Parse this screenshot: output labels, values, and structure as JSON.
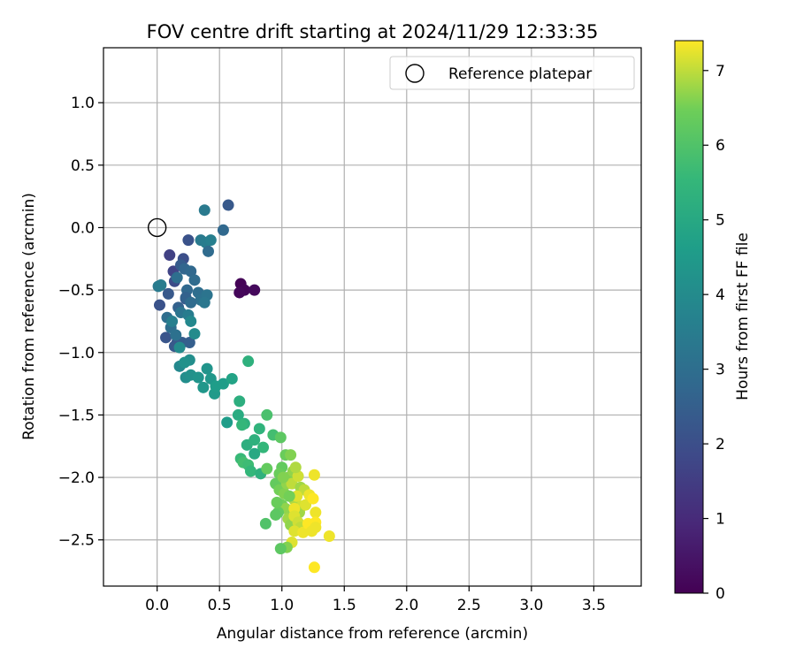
{
  "chart_data": {
    "type": "scatter",
    "title": "FOV centre drift starting at 2024/11/29 12:33:35",
    "xlabel": "Angular distance from reference (arcmin)",
    "ylabel": "Rotation from reference (arcmin)",
    "xlim": [
      -0.43,
      3.88
    ],
    "ylim": [
      -2.87,
      1.44
    ],
    "xticks": [
      0.0,
      0.5,
      1.0,
      1.5,
      2.0,
      2.5,
      3.0,
      3.5
    ],
    "xtick_labels": [
      "0.0",
      "0.5",
      "1.0",
      "1.5",
      "2.0",
      "2.5",
      "3.0",
      "3.5"
    ],
    "yticks": [
      1.0,
      0.5,
      0.0,
      -0.5,
      -1.0,
      -1.5,
      -2.0,
      -2.5
    ],
    "ytick_labels": [
      "1.0",
      "0.5",
      "0.0",
      "−0.5",
      "−1.0",
      "−1.5",
      "−2.0",
      "−2.5"
    ],
    "grid": true,
    "legend": {
      "placement": "top-right",
      "entries": [
        "Reference platepar"
      ]
    },
    "reference_point": {
      "x": 0.0,
      "y": 0.0
    },
    "colorbar": {
      "label": "Hours from first FF file",
      "colormap": "viridis",
      "range": [
        0,
        7.4
      ],
      "ticks": [
        0,
        1,
        2,
        3,
        4,
        5,
        6,
        7
      ],
      "tick_labels": [
        "0",
        "1",
        "2",
        "3",
        "4",
        "5",
        "6",
        "7"
      ]
    },
    "points": [
      {
        "x": 0.67,
        "y": -0.45,
        "h": 0.05
      },
      {
        "x": 0.7,
        "y": -0.5,
        "h": 0.1
      },
      {
        "x": 0.66,
        "y": -0.52,
        "h": 0.15
      },
      {
        "x": 0.78,
        "y": -0.5,
        "h": 0.2
      },
      {
        "x": 0.1,
        "y": -0.22,
        "h": 1.6
      },
      {
        "x": 0.13,
        "y": -0.35,
        "h": 1.7
      },
      {
        "x": 0.14,
        "y": -0.43,
        "h": 1.9
      },
      {
        "x": 0.21,
        "y": -0.25,
        "h": 2.0
      },
      {
        "x": 0.25,
        "y": -0.1,
        "h": 2.1
      },
      {
        "x": 0.23,
        "y": -0.57,
        "h": 2.2
      },
      {
        "x": 0.09,
        "y": -0.53,
        "h": 2.3
      },
      {
        "x": 0.02,
        "y": -0.62,
        "h": 2.1
      },
      {
        "x": 0.16,
        "y": -0.92,
        "h": 2.1
      },
      {
        "x": 0.07,
        "y": -0.88,
        "h": 2.2
      },
      {
        "x": 0.14,
        "y": -0.95,
        "h": 2.3
      },
      {
        "x": 0.2,
        "y": -0.92,
        "h": 2.4
      },
      {
        "x": 0.26,
        "y": -0.92,
        "h": 2.5
      },
      {
        "x": 0.19,
        "y": -0.3,
        "h": 2.4
      },
      {
        "x": 0.22,
        "y": -0.33,
        "h": 2.7
      },
      {
        "x": 0.27,
        "y": -0.35,
        "h": 2.8
      },
      {
        "x": 0.24,
        "y": -0.5,
        "h": 2.8
      },
      {
        "x": 0.3,
        "y": -0.42,
        "h": 2.9
      },
      {
        "x": 0.33,
        "y": -0.52,
        "h": 3.0
      },
      {
        "x": 0.35,
        "y": -0.58,
        "h": 3.1
      },
      {
        "x": 0.4,
        "y": -0.54,
        "h": 3.2
      },
      {
        "x": 0.38,
        "y": -0.6,
        "h": 3.3
      },
      {
        "x": 0.35,
        "y": -0.1,
        "h": 3.4
      },
      {
        "x": 0.39,
        "y": -0.12,
        "h": 3.5
      },
      {
        "x": 0.43,
        "y": -0.1,
        "h": 3.6
      },
      {
        "x": 0.41,
        "y": -0.19,
        "h": 2.9
      },
      {
        "x": 0.57,
        "y": 0.18,
        "h": 2.3
      },
      {
        "x": 0.53,
        "y": -0.02,
        "h": 2.8
      },
      {
        "x": 0.38,
        "y": 0.14,
        "h": 3.4
      },
      {
        "x": 0.17,
        "y": -0.64,
        "h": 2.6
      },
      {
        "x": 0.23,
        "y": -0.56,
        "h": 2.6
      },
      {
        "x": 0.16,
        "y": -0.4,
        "h": 3.0
      },
      {
        "x": 0.19,
        "y": -0.68,
        "h": 3.2
      },
      {
        "x": 0.27,
        "y": -0.6,
        "h": 2.9
      },
      {
        "x": 0.08,
        "y": -0.72,
        "h": 3.0
      },
      {
        "x": 0.11,
        "y": -0.8,
        "h": 3.0
      },
      {
        "x": 0.15,
        "y": -0.86,
        "h": 3.1
      },
      {
        "x": 0.01,
        "y": -0.47,
        "h": 3.4
      },
      {
        "x": 0.03,
        "y": -0.46,
        "h": 3.5
      },
      {
        "x": 0.12,
        "y": -0.75,
        "h": 3.6
      },
      {
        "x": 0.25,
        "y": -0.7,
        "h": 3.5
      },
      {
        "x": 0.27,
        "y": -0.75,
        "h": 3.9
      },
      {
        "x": 0.3,
        "y": -0.85,
        "h": 4.0
      },
      {
        "x": 0.18,
        "y": -0.96,
        "h": 4.0
      },
      {
        "x": 0.26,
        "y": -1.06,
        "h": 4.1
      },
      {
        "x": 0.18,
        "y": -1.11,
        "h": 3.9
      },
      {
        "x": 0.22,
        "y": -1.08,
        "h": 4.2
      },
      {
        "x": 0.23,
        "y": -1.2,
        "h": 4.1
      },
      {
        "x": 0.27,
        "y": -1.18,
        "h": 4.2
      },
      {
        "x": 0.33,
        "y": -1.2,
        "h": 4.3
      },
      {
        "x": 0.37,
        "y": -1.28,
        "h": 4.4
      },
      {
        "x": 0.4,
        "y": -1.13,
        "h": 4.3
      },
      {
        "x": 0.43,
        "y": -1.21,
        "h": 4.4
      },
      {
        "x": 0.46,
        "y": -1.33,
        "h": 4.5
      },
      {
        "x": 0.47,
        "y": -1.27,
        "h": 4.6
      },
      {
        "x": 0.53,
        "y": -1.25,
        "h": 4.6
      },
      {
        "x": 0.6,
        "y": -1.21,
        "h": 4.8
      },
      {
        "x": 0.56,
        "y": -1.56,
        "h": 4.6
      },
      {
        "x": 0.73,
        "y": -1.07,
        "h": 5.3
      },
      {
        "x": 0.66,
        "y": -1.39,
        "h": 5.2
      },
      {
        "x": 0.65,
        "y": -1.5,
        "h": 5.1
      },
      {
        "x": 0.7,
        "y": -1.57,
        "h": 5.3
      },
      {
        "x": 0.68,
        "y": -1.58,
        "h": 5.5
      },
      {
        "x": 0.72,
        "y": -1.74,
        "h": 5.2
      },
      {
        "x": 0.78,
        "y": -1.7,
        "h": 5.3
      },
      {
        "x": 0.82,
        "y": -1.61,
        "h": 5.4
      },
      {
        "x": 0.85,
        "y": -1.76,
        "h": 5.5
      },
      {
        "x": 0.88,
        "y": -1.5,
        "h": 5.9
      },
      {
        "x": 0.78,
        "y": -1.81,
        "h": 5.0
      },
      {
        "x": 0.67,
        "y": -1.85,
        "h": 5.6
      },
      {
        "x": 0.69,
        "y": -1.88,
        "h": 5.8
      },
      {
        "x": 0.73,
        "y": -1.9,
        "h": 5.7
      },
      {
        "x": 0.75,
        "y": -1.95,
        "h": 5.5
      },
      {
        "x": 0.83,
        "y": -1.97,
        "h": 5.3
      },
      {
        "x": 0.88,
        "y": -1.93,
        "h": 6.3
      },
      {
        "x": 0.93,
        "y": -1.66,
        "h": 5.8
      },
      {
        "x": 0.99,
        "y": -1.68,
        "h": 6.2
      },
      {
        "x": 1.03,
        "y": -1.82,
        "h": 6.4
      },
      {
        "x": 1.07,
        "y": -1.82,
        "h": 6.6
      },
      {
        "x": 1.0,
        "y": -1.92,
        "h": 6.3
      },
      {
        "x": 0.98,
        "y": -1.97,
        "h": 6.4
      },
      {
        "x": 1.05,
        "y": -2.0,
        "h": 6.6
      },
      {
        "x": 1.09,
        "y": -1.95,
        "h": 6.7
      },
      {
        "x": 0.95,
        "y": -2.05,
        "h": 6.3
      },
      {
        "x": 0.98,
        "y": -2.1,
        "h": 6.5
      },
      {
        "x": 1.02,
        "y": -2.13,
        "h": 6.6
      },
      {
        "x": 1.04,
        "y": -2.05,
        "h": 6.7
      },
      {
        "x": 1.0,
        "y": -2.22,
        "h": 6.5
      },
      {
        "x": 1.03,
        "y": -2.25,
        "h": 6.7
      },
      {
        "x": 0.97,
        "y": -2.28,
        "h": 6.3
      },
      {
        "x": 0.95,
        "y": -2.3,
        "h": 6.2
      },
      {
        "x": 0.87,
        "y": -2.37,
        "h": 6.0
      },
      {
        "x": 1.05,
        "y": -2.33,
        "h": 6.8
      },
      {
        "x": 1.07,
        "y": -2.38,
        "h": 6.7
      },
      {
        "x": 1.1,
        "y": -2.18,
        "h": 6.9
      },
      {
        "x": 1.08,
        "y": -2.05,
        "h": 7.0
      },
      {
        "x": 1.13,
        "y": -1.99,
        "h": 7.1
      },
      {
        "x": 1.15,
        "y": -2.08,
        "h": 6.8
      },
      {
        "x": 1.18,
        "y": -2.1,
        "h": 7.0
      },
      {
        "x": 1.12,
        "y": -2.15,
        "h": 7.2
      },
      {
        "x": 1.16,
        "y": -2.23,
        "h": 7.1
      },
      {
        "x": 1.14,
        "y": -2.28,
        "h": 6.8
      },
      {
        "x": 1.19,
        "y": -2.22,
        "h": 7.2
      },
      {
        "x": 1.22,
        "y": -2.14,
        "h": 7.3
      },
      {
        "x": 1.25,
        "y": -2.17,
        "h": 7.4
      },
      {
        "x": 1.26,
        "y": -1.98,
        "h": 7.3
      },
      {
        "x": 1.1,
        "y": -2.25,
        "h": 7.3
      },
      {
        "x": 1.1,
        "y": -2.31,
        "h": 7.2
      },
      {
        "x": 1.13,
        "y": -2.36,
        "h": 7.1
      },
      {
        "x": 1.15,
        "y": -2.4,
        "h": 7.0
      },
      {
        "x": 1.1,
        "y": -2.43,
        "h": 7.2
      },
      {
        "x": 1.17,
        "y": -2.44,
        "h": 7.3
      },
      {
        "x": 1.21,
        "y": -2.37,
        "h": 7.4
      },
      {
        "x": 1.24,
        "y": -2.43,
        "h": 7.3
      },
      {
        "x": 1.27,
        "y": -2.28,
        "h": 7.3
      },
      {
        "x": 1.27,
        "y": -2.36,
        "h": 7.4
      },
      {
        "x": 1.27,
        "y": -2.4,
        "h": 7.3
      },
      {
        "x": 1.38,
        "y": -2.47,
        "h": 7.3
      },
      {
        "x": 1.08,
        "y": -2.52,
        "h": 7.2
      },
      {
        "x": 1.04,
        "y": -2.56,
        "h": 6.6
      },
      {
        "x": 0.99,
        "y": -2.57,
        "h": 6.2
      },
      {
        "x": 1.26,
        "y": -2.72,
        "h": 7.4
      },
      {
        "x": 1.01,
        "y": -2.0,
        "h": 6.6
      },
      {
        "x": 1.06,
        "y": -2.15,
        "h": 6.5
      },
      {
        "x": 0.96,
        "y": -2.2,
        "h": 6.4
      },
      {
        "x": 1.11,
        "y": -1.92,
        "h": 6.9
      }
    ]
  }
}
